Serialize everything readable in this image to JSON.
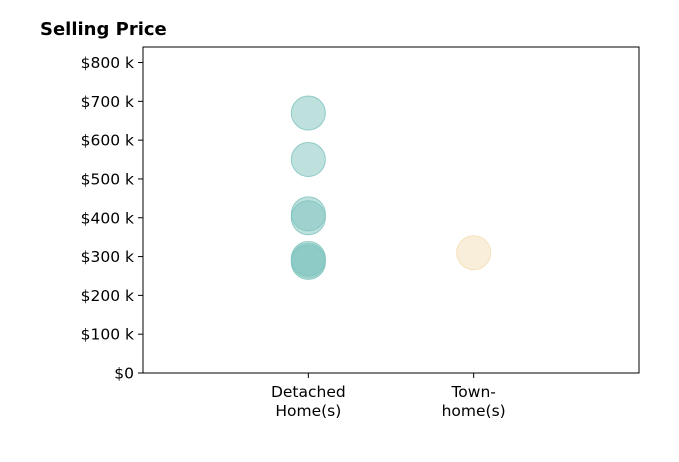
{
  "chart_data": {
    "type": "scatter",
    "title": "Selling Price",
    "xlabel": "",
    "ylabel": "",
    "categories": [
      [
        "Detached",
        "Home(s)"
      ],
      [
        "Town-",
        "home(s)"
      ]
    ],
    "xlim": [
      0,
      3
    ],
    "ylim": [
      0,
      840
    ],
    "yticks": [
      0,
      100,
      200,
      300,
      400,
      500,
      600,
      700,
      800
    ],
    "ytick_labels": [
      "$0",
      "$100 k",
      "$200 k",
      "$300 k",
      "$400 k",
      "$500 k",
      "$600 k",
      "$700 k",
      "$800 k"
    ],
    "grid": false,
    "series": [
      {
        "color": "#7fc4bd",
        "points": [
          {
            "x": 1,
            "y": 670
          },
          {
            "x": 1,
            "y": 550
          },
          {
            "x": 1,
            "y": 410
          },
          {
            "x": 1,
            "y": 400
          },
          {
            "x": 1,
            "y": 295
          },
          {
            "x": 1,
            "y": 290
          },
          {
            "x": 1,
            "y": 285
          }
        ]
      },
      {
        "color": "#f4ddb3",
        "points": [
          {
            "x": 2,
            "y": 310
          }
        ]
      }
    ]
  }
}
